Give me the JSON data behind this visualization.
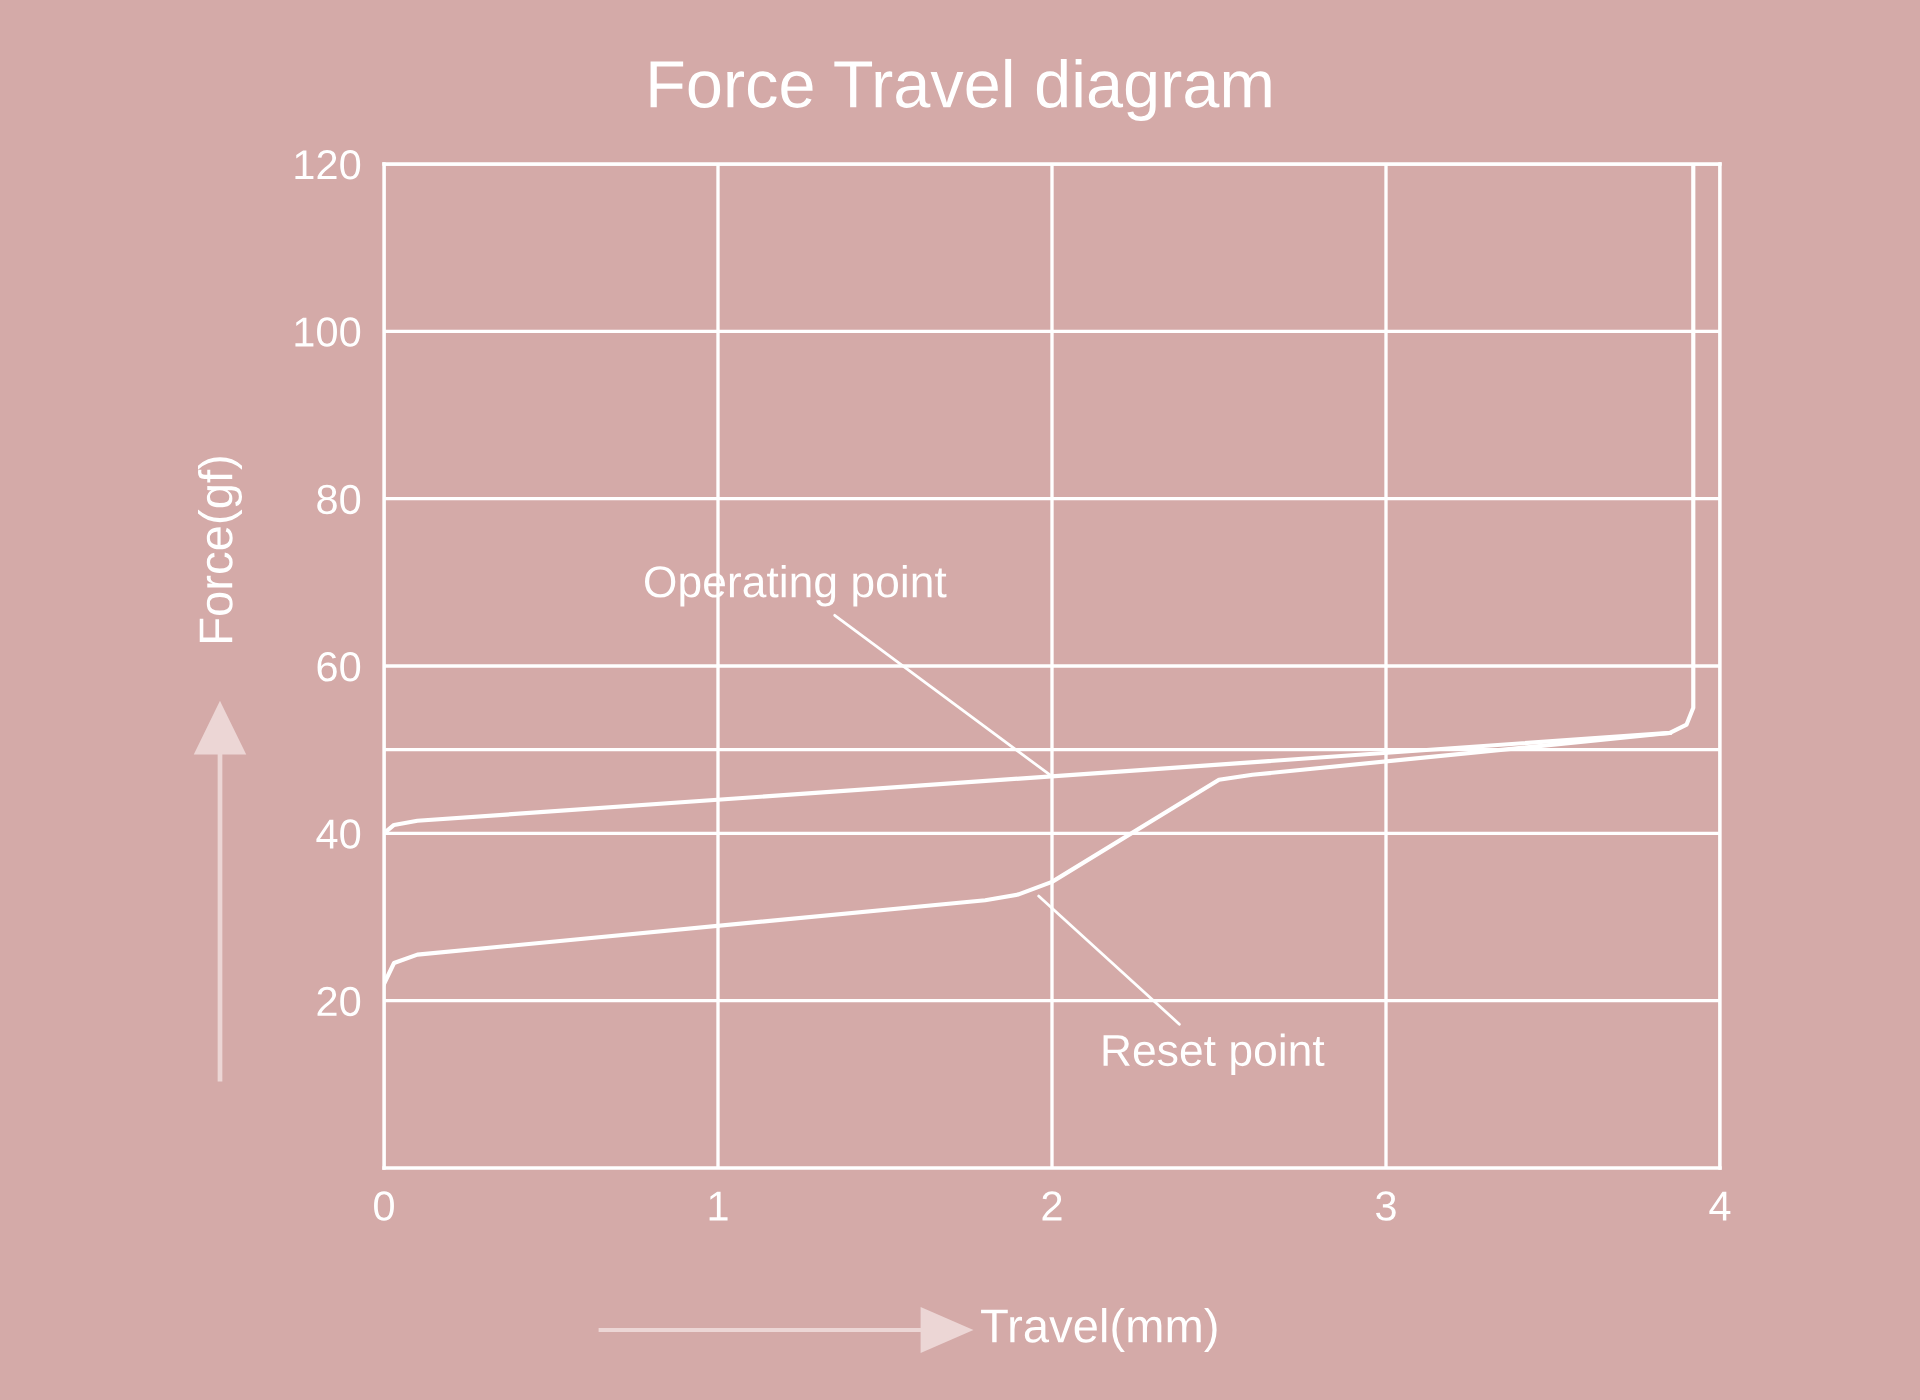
{
  "chart_data": {
    "type": "line",
    "title": "Force Travel diagram",
    "xlabel": "Travel(mm)",
    "ylabel": "Force(gf)",
    "xlim": [
      0,
      4
    ],
    "xticks": [
      0,
      1,
      2,
      3,
      4
    ],
    "ylim": [
      0,
      120
    ],
    "yticks": [
      20,
      40,
      {
        "value": 50,
        "label": null
      },
      60,
      80,
      100,
      120
    ],
    "grid": true,
    "marker": "none",
    "line_style": "solid",
    "series": [
      {
        "color": "#ffffff",
        "x": [
          0,
          0.03,
          0.1,
          3.85,
          3.9,
          3.92,
          3.92
        ],
        "values": [
          40,
          41,
          41.5,
          52,
          53,
          55,
          120
        ]
      },
      {
        "color": "#ffffff",
        "x": [
          0,
          0.03,
          0.1,
          1.8,
          1.9,
          2.0,
          2.5,
          2.6,
          3.85
        ],
        "values": [
          22,
          24.5,
          25.5,
          32,
          32.7,
          34.2,
          46.4,
          47,
          52
        ]
      }
    ],
    "annotations": [
      {
        "text": "Operating point",
        "x": 2,
        "y": 46.8
      },
      {
        "text": "Reset point",
        "x": 1.96,
        "y": 32.5
      }
    ]
  }
}
